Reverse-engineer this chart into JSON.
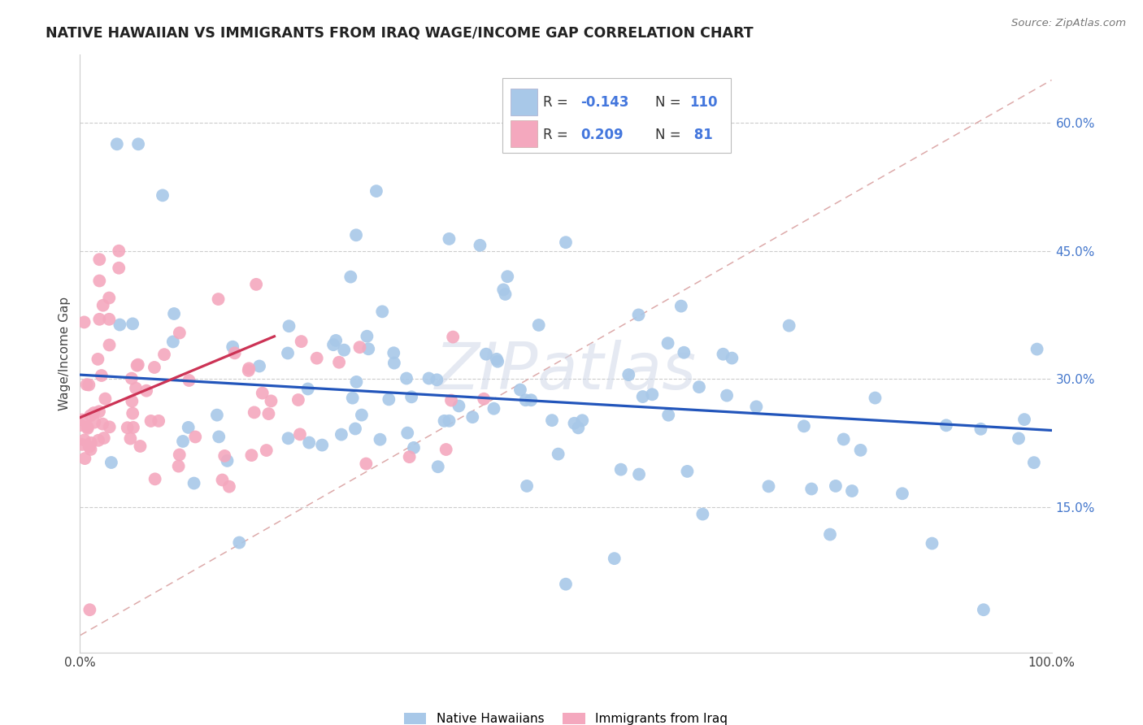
{
  "title": "NATIVE HAWAIIAN VS IMMIGRANTS FROM IRAQ WAGE/INCOME GAP CORRELATION CHART",
  "source": "Source: ZipAtlas.com",
  "ylabel": "Wage/Income Gap",
  "xlim": [
    0,
    1
  ],
  "ylim": [
    -0.02,
    0.68
  ],
  "ytick_labels_right": [
    "15.0%",
    "30.0%",
    "45.0%",
    "60.0%"
  ],
  "ytick_values_right": [
    0.15,
    0.3,
    0.45,
    0.6
  ],
  "blue_R": -0.143,
  "blue_N": 110,
  "pink_R": 0.209,
  "pink_N": 81,
  "blue_color": "#a8c8e8",
  "pink_color": "#f4a8be",
  "blue_line_color": "#2255bb",
  "pink_line_color": "#cc3355",
  "diag_line_color": "#ddaaaa",
  "background_color": "#ffffff",
  "watermark": "ZIPatlas",
  "legend_label_blue": "Native Hawaiians",
  "legend_label_pink": "Immigrants from Iraq",
  "blue_line_x0": 0.0,
  "blue_line_y0": 0.305,
  "blue_line_x1": 1.0,
  "blue_line_y1": 0.24,
  "pink_line_x0": 0.0,
  "pink_line_y0": 0.255,
  "pink_line_x1": 0.2,
  "pink_line_y1": 0.35
}
